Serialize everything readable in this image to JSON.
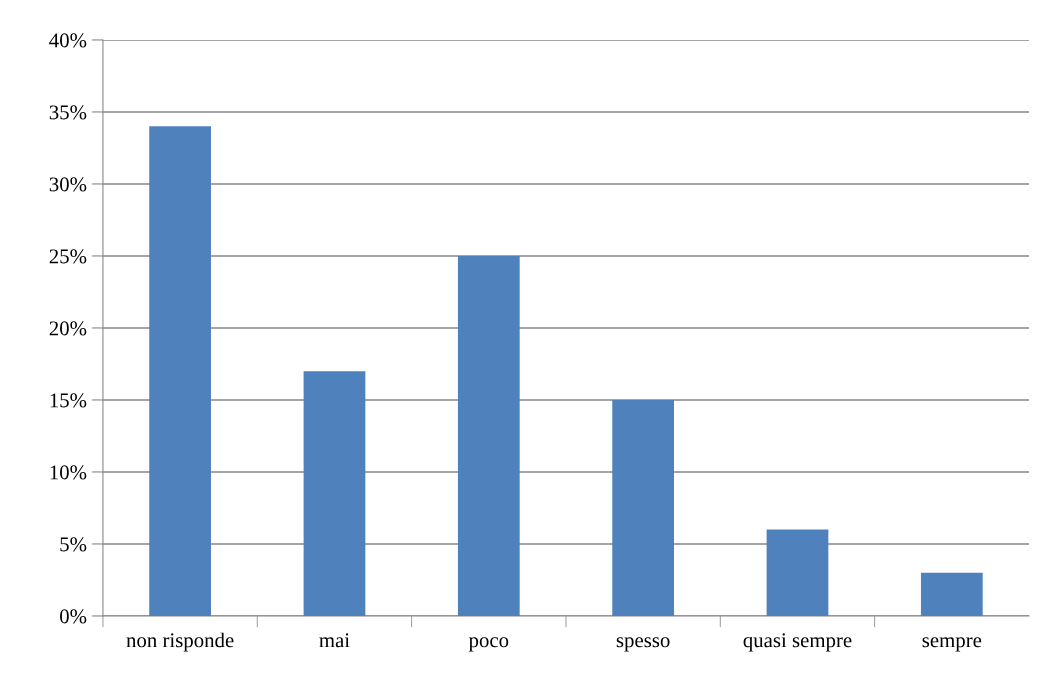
{
  "chart_data": {
    "type": "bar",
    "categories": [
      "non risponde",
      "mai",
      "poco",
      "spesso",
      "quasi sempre",
      "sempre"
    ],
    "values": [
      34,
      17,
      25,
      15,
      6,
      3
    ],
    "color": "#4f81bd",
    "ylim": [
      0,
      40
    ],
    "yticks": [
      {
        "value": 0,
        "label": "0%"
      },
      {
        "value": 5,
        "label": "5%"
      },
      {
        "value": 10,
        "label": "10%"
      },
      {
        "value": 15,
        "label": "15%"
      },
      {
        "value": 20,
        "label": "20%"
      },
      {
        "value": 25,
        "label": "25%"
      },
      {
        "value": 30,
        "label": "30%"
      },
      {
        "value": 35,
        "label": "35%"
      },
      {
        "value": 40,
        "label": "40%"
      }
    ],
    "grid": "y",
    "legend": false
  }
}
